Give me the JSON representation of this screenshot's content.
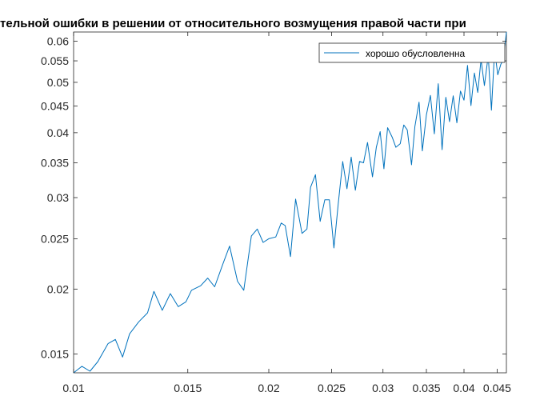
{
  "chart_data": {
    "type": "line",
    "title": "тельной ошибки в решении от относительного возмущения правой части при",
    "xscale": "log",
    "yscale": "log",
    "xlim": [
      0.01,
      0.0465
    ],
    "ylim": [
      0.0138,
      0.0625
    ],
    "x_ticks": [
      0.01,
      0.015,
      0.02,
      0.025,
      0.03,
      0.035,
      0.04,
      0.045
    ],
    "x_tick_labels": [
      "0.01",
      "0.015",
      "0.02",
      "0.025",
      "0.03",
      "0.035",
      "0.04",
      "0.045"
    ],
    "y_ticks": [
      0.015,
      0.02,
      0.025,
      0.03,
      0.035,
      0.04,
      0.045,
      0.05,
      0.055,
      0.06
    ],
    "y_tick_labels": [
      "0.015",
      "0.02",
      "0.025",
      "0.03",
      "0.035",
      "0.04",
      "0.045",
      "0.05",
      "0.055",
      "0.06"
    ],
    "legend_location": "top-right",
    "grid": false,
    "series": [
      {
        "name": "хорошо обусловленна",
        "color": "#0072BD",
        "x": [
          0.01,
          0.0103,
          0.0106,
          0.0109,
          0.0113,
          0.0116,
          0.0119,
          0.0122,
          0.0126,
          0.013,
          0.0133,
          0.0137,
          0.0141,
          0.0145,
          0.0149,
          0.0152,
          0.0157,
          0.0161,
          0.0165,
          0.017,
          0.0174,
          0.0179,
          0.0183,
          0.0188,
          0.0192,
          0.0196,
          0.02,
          0.0205,
          0.0209,
          0.0212,
          0.0216,
          0.022,
          0.0225,
          0.0229,
          0.0232,
          0.0236,
          0.024,
          0.0244,
          0.0248,
          0.0252,
          0.0256,
          0.026,
          0.0264,
          0.0268,
          0.0272,
          0.0276,
          0.028,
          0.0284,
          0.0289,
          0.0293,
          0.0297,
          0.0301,
          0.0305,
          0.031,
          0.0314,
          0.0319,
          0.0323,
          0.0327,
          0.0332,
          0.0336,
          0.0341,
          0.0345,
          0.035,
          0.0355,
          0.036,
          0.0365,
          0.037,
          0.0375,
          0.038,
          0.0385,
          0.039,
          0.0395,
          0.04,
          0.0405,
          0.041,
          0.0415,
          0.042,
          0.0425,
          0.043,
          0.0436,
          0.0441,
          0.0446,
          0.0451,
          0.0456,
          0.046,
          0.0465
        ],
        "values": [
          0.0138,
          0.0142,
          0.0139,
          0.0145,
          0.0157,
          0.016,
          0.0148,
          0.0164,
          0.0173,
          0.018,
          0.0198,
          0.0182,
          0.0196,
          0.0185,
          0.0189,
          0.0199,
          0.0203,
          0.021,
          0.0202,
          0.0224,
          0.0242,
          0.0207,
          0.0199,
          0.0253,
          0.0261,
          0.0246,
          0.025,
          0.0252,
          0.0268,
          0.0265,
          0.0231,
          0.0298,
          0.0256,
          0.0261,
          0.0314,
          0.0332,
          0.027,
          0.0297,
          0.0297,
          0.024,
          0.0293,
          0.0352,
          0.0312,
          0.0359,
          0.031,
          0.0352,
          0.035,
          0.0383,
          0.0329,
          0.0375,
          0.0402,
          0.0341,
          0.0409,
          0.0392,
          0.0375,
          0.0381,
          0.0414,
          0.0405,
          0.0347,
          0.0411,
          0.0458,
          0.0369,
          0.0433,
          0.0472,
          0.0398,
          0.0497,
          0.0371,
          0.0468,
          0.042,
          0.0471,
          0.0418,
          0.0481,
          0.0462,
          0.0539,
          0.0451,
          0.0521,
          0.0478,
          0.0553,
          0.0493,
          0.0563,
          0.0442,
          0.0577,
          0.0517,
          0.0542,
          0.0552,
          0.0625
        ]
      }
    ]
  }
}
